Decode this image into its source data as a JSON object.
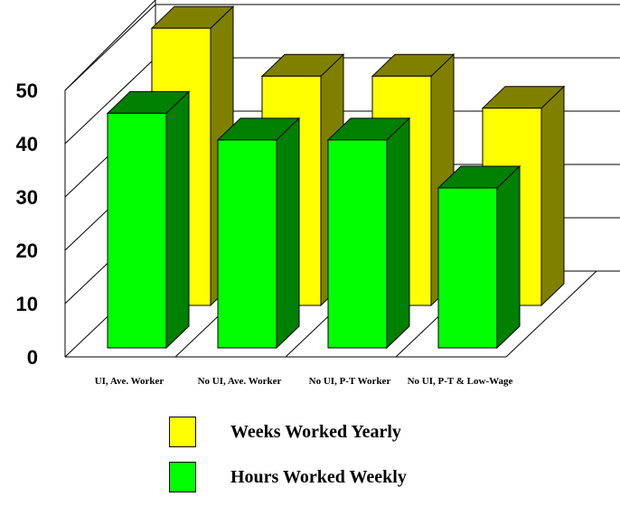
{
  "chart_data": {
    "type": "bar",
    "categories": [
      "UI, Ave. Worker",
      "No UI, Ave. Worker",
      "No UI, P-T Worker",
      "No UI, P-T & Low-Wage"
    ],
    "series": [
      {
        "name": "Weeks Worked Yearly",
        "values": [
          52,
          43,
          43,
          37
        ]
      },
      {
        "name": "Hours Worked Weekly",
        "values": [
          44,
          39,
          39,
          30
        ]
      }
    ],
    "yticks": [
      "0",
      "10",
      "20",
      "30",
      "40",
      "50"
    ],
    "ylim": [
      0,
      50
    ],
    "title": "",
    "xlabel": "",
    "ylabel": "",
    "grid": true,
    "legend_position": "bottom",
    "colors": {
      "yellow_front": "#ffff00",
      "yellow_top": "#808000",
      "yellow_side": "#808000",
      "green_front": "#00ff00",
      "green_top": "#008000",
      "green_side": "#008000"
    }
  }
}
